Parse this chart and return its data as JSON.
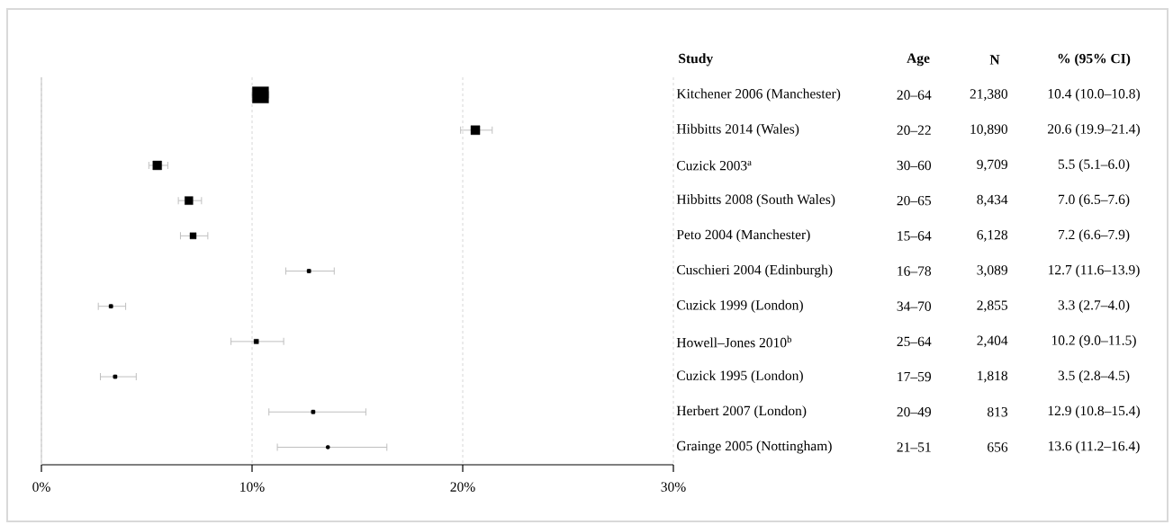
{
  "chart_data": {
    "type": "bubble",
    "orientation": "horizontal",
    "categories": [
      "Kitchener 2006 (Manchester)",
      "Hibbitts 2014 (Wales)",
      "Cuzick 2003$^{a}$",
      "Hibbitts 2008 (South Wales)",
      "Peto 2004 (Manchester)",
      "Cuschieri 2004 (Edinburgh)",
      "Cuzick 1999 (London)",
      "Howell–Jones 2010$^{b}$",
      "Cuzick 1995 (London)",
      "Herbert 2007 (London)",
      "Grainge 2005 (Nottingham)"
    ],
    "values": [
      10.4,
      20.6,
      5.5,
      7.0,
      7.2,
      12.7,
      3.3,
      10.2,
      3.5,
      12.9,
      13.6
    ],
    "errors": [
      [
        10.0,
        10.8
      ],
      [
        19.9,
        21.4
      ],
      [
        5.1,
        6.0
      ],
      [
        6.5,
        7.6
      ],
      [
        6.6,
        7.9
      ],
      [
        11.6,
        13.9
      ],
      [
        2.7,
        4.0
      ],
      [
        9.0,
        11.5
      ],
      [
        2.8,
        4.5
      ],
      [
        10.8,
        15.4
      ],
      [
        11.2,
        16.4
      ]
    ],
    "sizes": [
      1,
      0.31,
      0.3,
      0.25,
      0.15,
      0.05,
      0.05,
      0.08,
      0.05,
      0.05,
      0.03
    ],
    "annotations": [
      "Study",
      "Age",
      "N",
      "% (95% CI)",
      "20–64",
      "21,380",
      "10.4 (10.0–10.8)",
      "20–22",
      "10,890",
      "20.6 (19.9–21.4)",
      "30–60",
      "9,709",
      "5.5 (5.1–6.0)",
      "20–65",
      "8,434",
      "7.0 (6.5–7.6)",
      "15–64",
      "6,128",
      "7.2 (6.6–7.9)",
      "16–78",
      "3,089",
      "12.7 (11.6–13.9)",
      "34–70",
      "2,855",
      "3.3 (2.7–4.0)",
      "25–64",
      "2,404",
      "10.2 (9.0–11.5)",
      "17–59",
      "1,818",
      "3.5 (2.8–4.5)",
      "20–49",
      "813",
      "12.9 (10.8–15.4)",
      "21–51",
      "656",
      "13.6 (11.2–16.4)"
    ],
    "color": "#000000",
    "marker": "square",
    "xlim": [
      0,
      30
    ],
    "xticks": [
      {
        "value": 0,
        "label": "0%"
      },
      {
        "value": 10,
        "label": "10%"
      },
      {
        "value": 20,
        "label": "20%"
      },
      {
        "value": 30,
        "label": "30%"
      }
    ],
    "grid": "x"
  }
}
